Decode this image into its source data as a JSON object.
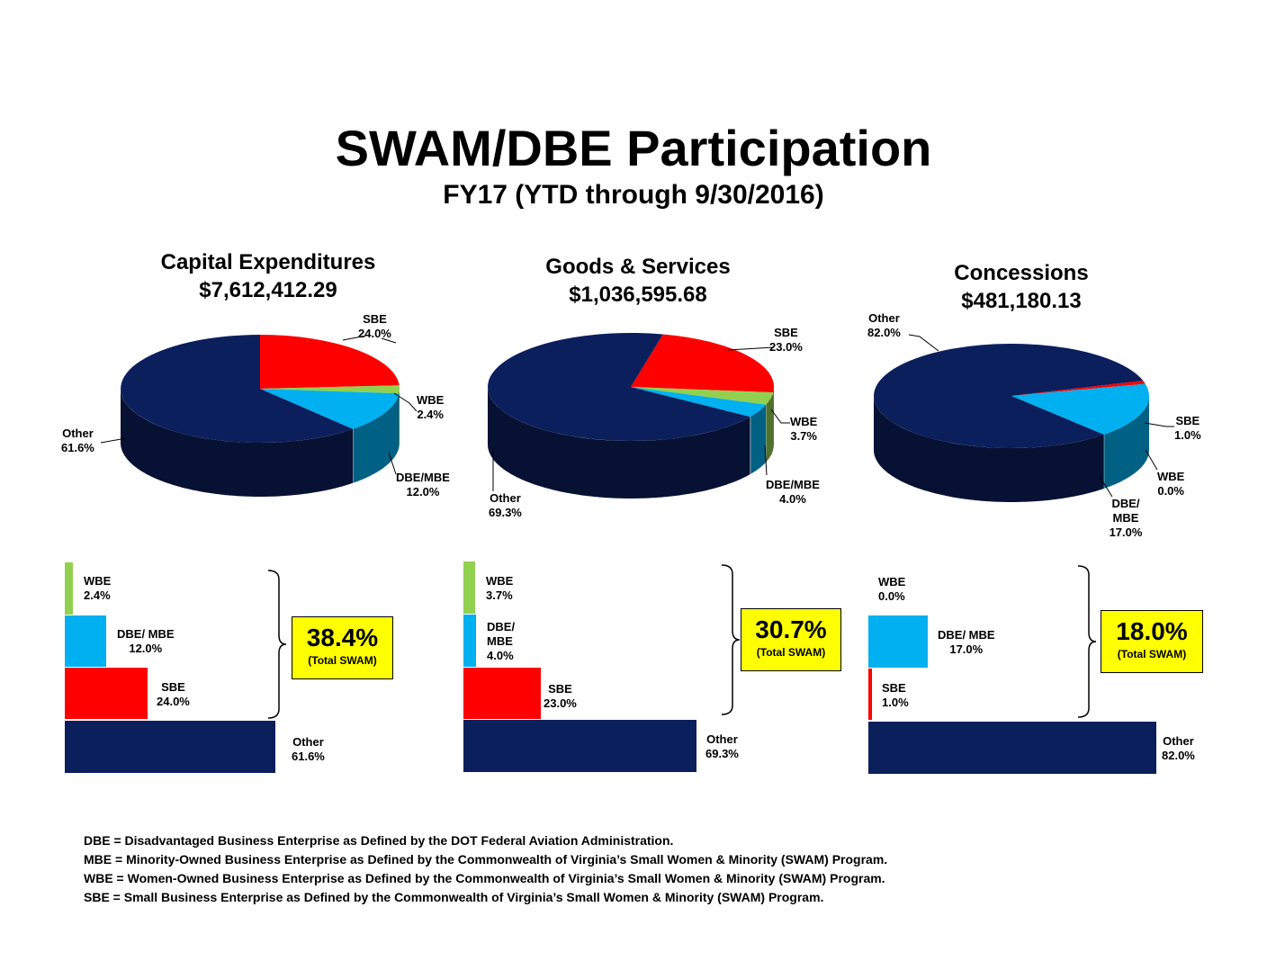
{
  "header": {
    "title": "SWAM/DBE Participation",
    "subtitle": "FY17 (YTD through 9/30/2016)"
  },
  "colors": {
    "other": "#0a1f5c",
    "sbe": "#ff0000",
    "wbe": "#92d050",
    "dbe_mbe": "#00b0f0",
    "swam_box": "#ffff00"
  },
  "chart_data": [
    {
      "type": "pie",
      "title": "Capital Expenditures",
      "subtitle": "$7,612,412.29",
      "slices": [
        {
          "name": "SBE",
          "value": 24.0,
          "label": "SBE",
          "pct": "24.0%"
        },
        {
          "name": "WBE",
          "value": 2.4,
          "label": "WBE",
          "pct": "2.4%"
        },
        {
          "name": "DBE/MBE",
          "value": 12.0,
          "label": "DBE/MBE",
          "pct": "12.0%"
        },
        {
          "name": "Other",
          "value": 61.6,
          "label": "Other",
          "pct": "61.6%"
        }
      ],
      "bars": [
        {
          "name": "WBE",
          "value": 2.4,
          "label": "WBE",
          "pct": "2.4%"
        },
        {
          "name": "DBE/MBE",
          "value": 12.0,
          "label": "DBE/ MBE",
          "pct": "12.0%"
        },
        {
          "name": "SBE",
          "value": 24.0,
          "label": "SBE",
          "pct": "24.0%"
        },
        {
          "name": "Other",
          "value": 61.6,
          "label": "Other",
          "pct": "61.6%"
        }
      ],
      "total_swam": {
        "pct": "38.4%",
        "caption": "(Total SWAM)"
      }
    },
    {
      "type": "pie",
      "title": "Goods & Services",
      "subtitle": "$1,036,595.68",
      "slices": [
        {
          "name": "SBE",
          "value": 23.0,
          "label": "SBE",
          "pct": "23.0%"
        },
        {
          "name": "WBE",
          "value": 3.7,
          "label": "WBE",
          "pct": "3.7%"
        },
        {
          "name": "DBE/MBE",
          "value": 4.0,
          "label": "DBE/MBE",
          "pct": "4.0%"
        },
        {
          "name": "Other",
          "value": 69.3,
          "label": "Other",
          "pct": "69.3%"
        }
      ],
      "bars": [
        {
          "name": "WBE",
          "value": 3.7,
          "label": "WBE",
          "pct": "3.7%"
        },
        {
          "name": "DBE/MBE",
          "value": 4.0,
          "label": "DBE/ MBE",
          "pct": "4.0%"
        },
        {
          "name": "SBE",
          "value": 23.0,
          "label": "SBE",
          "pct": "23.0%"
        },
        {
          "name": "Other",
          "value": 69.3,
          "label": "Other",
          "pct": "69.3%"
        }
      ],
      "total_swam": {
        "pct": "30.7%",
        "caption": "(Total SWAM)"
      }
    },
    {
      "type": "pie",
      "title": "Concessions",
      "subtitle": "$481,180.13",
      "slices": [
        {
          "name": "Other",
          "value": 82.0,
          "label": "Other",
          "pct": "82.0%"
        },
        {
          "name": "SBE",
          "value": 1.0,
          "label": "SBE",
          "pct": "1.0%"
        },
        {
          "name": "WBE",
          "value": 0.0,
          "label": "WBE",
          "pct": "0.0%"
        },
        {
          "name": "DBE/MBE",
          "value": 17.0,
          "label": "DBE/ MBE",
          "pct": "17.0%"
        }
      ],
      "bars": [
        {
          "name": "WBE",
          "value": 0.0,
          "label": "WBE",
          "pct": "0.0%"
        },
        {
          "name": "DBE/MBE",
          "value": 17.0,
          "label": "DBE/ MBE",
          "pct": "17.0%"
        },
        {
          "name": "SBE",
          "value": 1.0,
          "label": "SBE",
          "pct": "1.0%"
        },
        {
          "name": "Other",
          "value": 82.0,
          "label": "Other",
          "pct": "82.0%"
        }
      ],
      "total_swam": {
        "pct": "18.0%",
        "caption": "(Total SWAM)"
      }
    }
  ],
  "footnotes": [
    "DBE = Disadvantaged Business Enterprise as Defined by the DOT Federal Aviation Administration.",
    "MBE = Minority-Owned Business Enterprise as Defined by the Commonwealth of Virginia’s Small Women & Minority (SWAM) Program.",
    "WBE = Women-Owned Business Enterprise as Defined by the Commonwealth of Virginia’s Small Women & Minority (SWAM) Program.",
    "SBE = Small Business Enterprise as Defined by the Commonwealth of Virginia’s Small Women & Minority (SWAM) Program."
  ]
}
